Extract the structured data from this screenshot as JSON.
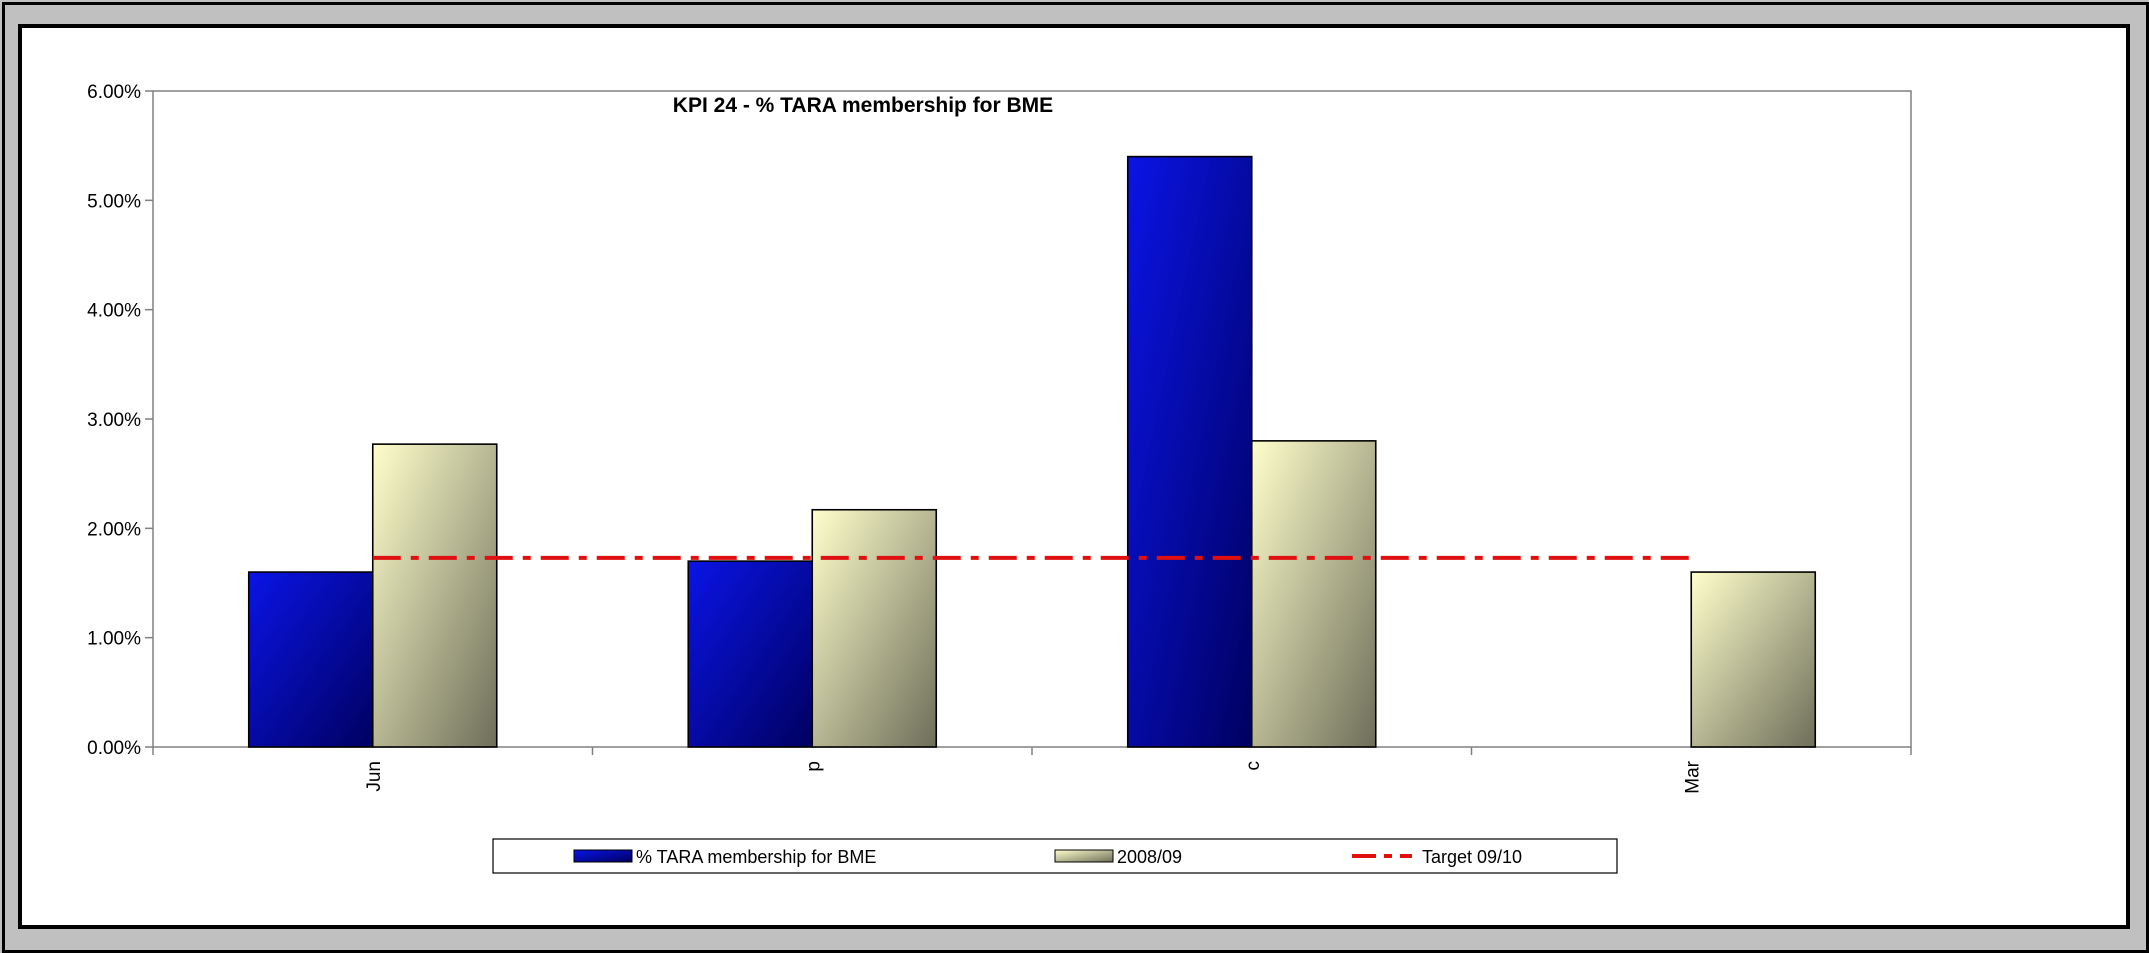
{
  "chart_data": {
    "type": "bar",
    "title": "KPI 24 - % TARA membership for BME",
    "categories": [
      "Jun",
      "p",
      "c",
      "Mar"
    ],
    "series": [
      {
        "name": "% TARA membership for BME",
        "values": [
          0.016,
          0.017,
          0.054,
          null
        ]
      },
      {
        "name": "2008/09",
        "values": [
          0.0277,
          0.0217,
          0.028,
          0.016
        ]
      }
    ],
    "target": {
      "name": "Target 09/10",
      "value": 0.0173
    },
    "ylim": [
      0,
      0.06
    ],
    "y_ticks": [
      {
        "value": 0.0,
        "label": "0.00%"
      },
      {
        "value": 0.01,
        "label": "1.00%"
      },
      {
        "value": 0.02,
        "label": "2.00%"
      },
      {
        "value": 0.03,
        "label": "3.00%"
      },
      {
        "value": 0.04,
        "label": "4.00%"
      },
      {
        "value": 0.05,
        "label": "5.00%"
      },
      {
        "value": 0.06,
        "label": "6.00%"
      }
    ],
    "xlabel": "",
    "ylabel": "",
    "grid": false,
    "legend_position": "bottom-center",
    "colors": {
      "series1_light": "#0a14e6",
      "series1_dark": "#000060",
      "series2_light": "#ffffcc",
      "series2_dark": "#6e6e5a",
      "target": "#e01010",
      "axis": "#808080"
    }
  }
}
